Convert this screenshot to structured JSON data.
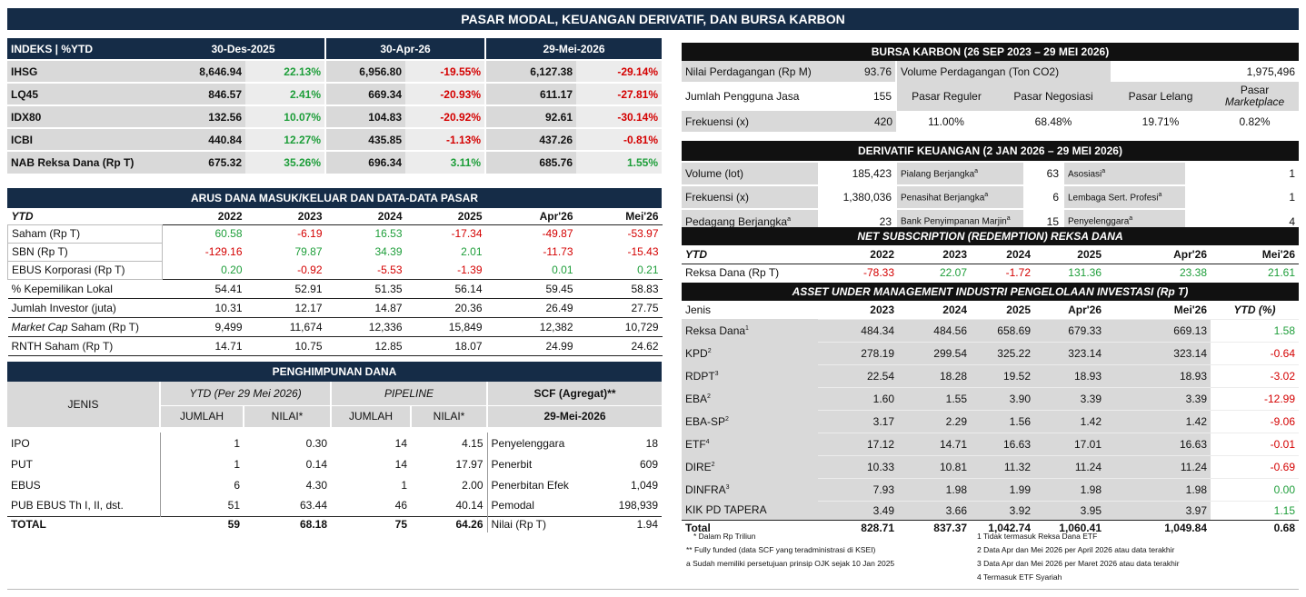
{
  "title": "PASAR MODAL, KEUANGAN DERIVATIF, DAN BURSA KARBON",
  "indeks": {
    "header": [
      "INDEKS | %YTD",
      "30-Des-2025",
      "30-Apr-26",
      "29-Mei-2026"
    ],
    "rows": [
      [
        "IHSG",
        "8,646.94",
        "22.13%",
        "6,956.80",
        "-19.55%",
        "6,127.38",
        "-29.14%"
      ],
      [
        "LQ45",
        "846.57",
        "2.41%",
        "669.34",
        "-20.93%",
        "611.17",
        "-27.81%"
      ],
      [
        "IDX80",
        "132.56",
        "10.07%",
        "104.83",
        "-20.92%",
        "92.61",
        "-30.14%"
      ],
      [
        "ICBI",
        "440.84",
        "12.27%",
        "435.85",
        "-1.13%",
        "437.26",
        "-0.81%"
      ],
      [
        "NAB Reksa Dana (Rp T)",
        "675.32",
        "35.26%",
        "696.34",
        "3.11%",
        "685.76",
        "1.55%"
      ]
    ]
  },
  "arus": {
    "title": "ARUS DANA MASUK/KELUAR DAN DATA-DATA PASAR",
    "header": [
      "YTD",
      "2022",
      "2023",
      "2024",
      "2025",
      "Apr'26",
      "Mei'26"
    ],
    "rows": [
      [
        "Saham (Rp T)",
        "60.58",
        "-6.19",
        "16.53",
        "-17.34",
        "-49.87",
        "-53.97"
      ],
      [
        "SBN (Rp T)",
        "-129.16",
        "79.87",
        "34.39",
        "2.01",
        "-11.73",
        "-15.43"
      ],
      [
        "EBUS Korporasi (Rp T)",
        "0.20",
        "-0.92",
        "-5.53",
        "-1.39",
        "0.01",
        "0.21"
      ],
      [
        "% Kepemilikan Lokal",
        "54.41",
        "52.91",
        "51.35",
        "56.14",
        "59.45",
        "58.83"
      ],
      [
        "Jumlah Investor (juta)",
        "10.31",
        "12.17",
        "14.87",
        "20.36",
        "26.49",
        "27.75"
      ],
      [
        "Market Cap Saham (Rp T)",
        "9,499",
        "11,674",
        "12,336",
        "15,849",
        "12,382",
        "10,729"
      ],
      [
        "RNTH Saham (Rp T)",
        "14.71",
        "10.75",
        "12.85",
        "18.07",
        "24.99",
        "24.62"
      ]
    ]
  },
  "penghimpunan": {
    "title": "PENGHIMPUNAN DANA",
    "jenis": "JENIS",
    "ytd_label": "YTD (Per 29 Mei 2026)",
    "pipeline_label": "PIPELINE",
    "scf_label": "SCF (Agregat)**",
    "scf_date": "29-Mei-2026",
    "sub": [
      "JUMLAH",
      "NILAI*",
      "JUMLAH",
      "NILAI*"
    ],
    "rows": [
      [
        "IPO",
        "1",
        "0.30",
        "14",
        "4.15",
        "Penyelenggara",
        "18"
      ],
      [
        "PUT",
        "1",
        "0.14",
        "14",
        "17.97",
        "Penerbit",
        "609"
      ],
      [
        "EBUS",
        "6",
        "4.30",
        "1",
        "2.00",
        "Penerbitan Efek",
        "1,049"
      ],
      [
        "PUB EBUS Th I, II, dst.",
        "51",
        "63.44",
        "46",
        "40.14",
        "Pemodal",
        "198,939"
      ]
    ],
    "total": [
      "TOTAL",
      "59",
      "68.18",
      "75",
      "64.26",
      "Nilai (Rp T)",
      "1.94"
    ]
  },
  "karbon": {
    "title": "BURSA KARBON (26 SEP 2023 – 29 MEI 2026)",
    "nilai_label": "Nilai Perdagangan (Rp M)",
    "nilai": "93.76",
    "volume_label": "Volume Perdagangan (Ton CO2)",
    "volume": "1,975,496",
    "pengguna_label": "Jumlah Pengguna Jasa",
    "pengguna": "155",
    "frek_label": "Frekuensi (x)",
    "frek": "420",
    "pasar": [
      "Pasar Reguler",
      "Pasar Negosiasi",
      "Pasar Lelang",
      "Pasar"
    ],
    "pasar_sub": "Marketplace",
    "pasar_val": [
      "11.00%",
      "68.48%",
      "19.71%",
      "0.82%"
    ]
  },
  "derivatif": {
    "title": "DERIVATIF KEUANGAN (2 JAN 2026 – 29 MEI 2026)",
    "rows": [
      [
        "Volume (lot)",
        "185,423",
        "Pialang Berjangka",
        "63",
        "Asosiasi",
        "1"
      ],
      [
        "Frekuensi (x)",
        "1,380,036",
        "Penasihat Berjangka",
        "6",
        "Lembaga Sert. Profesi",
        "1"
      ],
      [
        "Pedagang Berjangka",
        "23",
        "Bank Penyimpanan Marjin",
        "15",
        "Penyelenggara",
        "4"
      ]
    ],
    "sup": "a"
  },
  "netsub": {
    "title_a": "NET SUBSCRIPTION (REDEMPTION)",
    "title_b": " REKSA DANA",
    "header": [
      "YTD",
      "2022",
      "2023",
      "2024",
      "2025",
      "Apr'26",
      "Mei'26"
    ],
    "row": [
      "Reksa Dana (Rp T)",
      "-78.33",
      "22.07",
      "-1.72",
      "131.36",
      "23.38",
      "21.61"
    ]
  },
  "aum": {
    "title_a": "ASSET UNDER MANAGEMENT",
    "title_b": " INDUSTRI PENGELOLAAN INVESTASI (Rp T)",
    "header": [
      "Jenis",
      "2023",
      "2024",
      "2025",
      "Apr'26",
      "Mei'26",
      "YTD (%)"
    ],
    "rows": [
      [
        "Reksa Dana",
        "1",
        "484.34",
        "484.56",
        "658.69",
        "679.33",
        "669.13",
        "1.58"
      ],
      [
        "KPD",
        "2",
        "278.19",
        "299.54",
        "325.22",
        "323.14",
        "323.14",
        "-0.64"
      ],
      [
        "RDPT",
        "3",
        "22.54",
        "18.28",
        "19.52",
        "18.93",
        "18.93",
        "-3.02"
      ],
      [
        "EBA",
        "2",
        "1.60",
        "1.55",
        "3.90",
        "3.39",
        "3.39",
        "-12.99"
      ],
      [
        "EBA-SP",
        "2",
        "3.17",
        "2.29",
        "1.56",
        "1.42",
        "1.42",
        "-9.06"
      ],
      [
        "ETF",
        "4",
        "17.12",
        "14.71",
        "16.63",
        "17.01",
        "16.63",
        "-0.01"
      ],
      [
        "DIRE",
        "2",
        "10.33",
        "10.81",
        "11.32",
        "11.24",
        "11.24",
        "-0.69"
      ],
      [
        "DINFRA",
        "3",
        "7.93",
        "1.98",
        "1.99",
        "1.98",
        "1.98",
        "0.00"
      ],
      [
        "KIK PD TAPERA",
        "",
        "3.49",
        "3.66",
        "3.92",
        "3.95",
        "3.97",
        "1.15"
      ]
    ],
    "total": [
      "Total",
      "828.71",
      "837.37",
      "1,042.74",
      "1,060.41",
      "1,049.84",
      "0.68"
    ]
  },
  "notes": {
    "left": [
      "* Dalam Rp Triliun",
      "** Fully funded (data SCF yang teradministrasi di KSEI)",
      "a Sudah memiliki persetujuan prinsip OJK sejak 10 Jan 2025"
    ],
    "right": [
      "1 Tidak termasuk Reksa Dana ETF",
      "2 Data Apr dan Mei 2026 per April 2026 atau data terakhir",
      "3 Data Apr dan Mei 2026 per Maret 2026 atau data terakhir",
      "4 Termasuk ETF Syariah"
    ]
  },
  "colors": {
    "navy": "#152c47",
    "positive": "#1e9e3a",
    "negative": "#d40000"
  }
}
